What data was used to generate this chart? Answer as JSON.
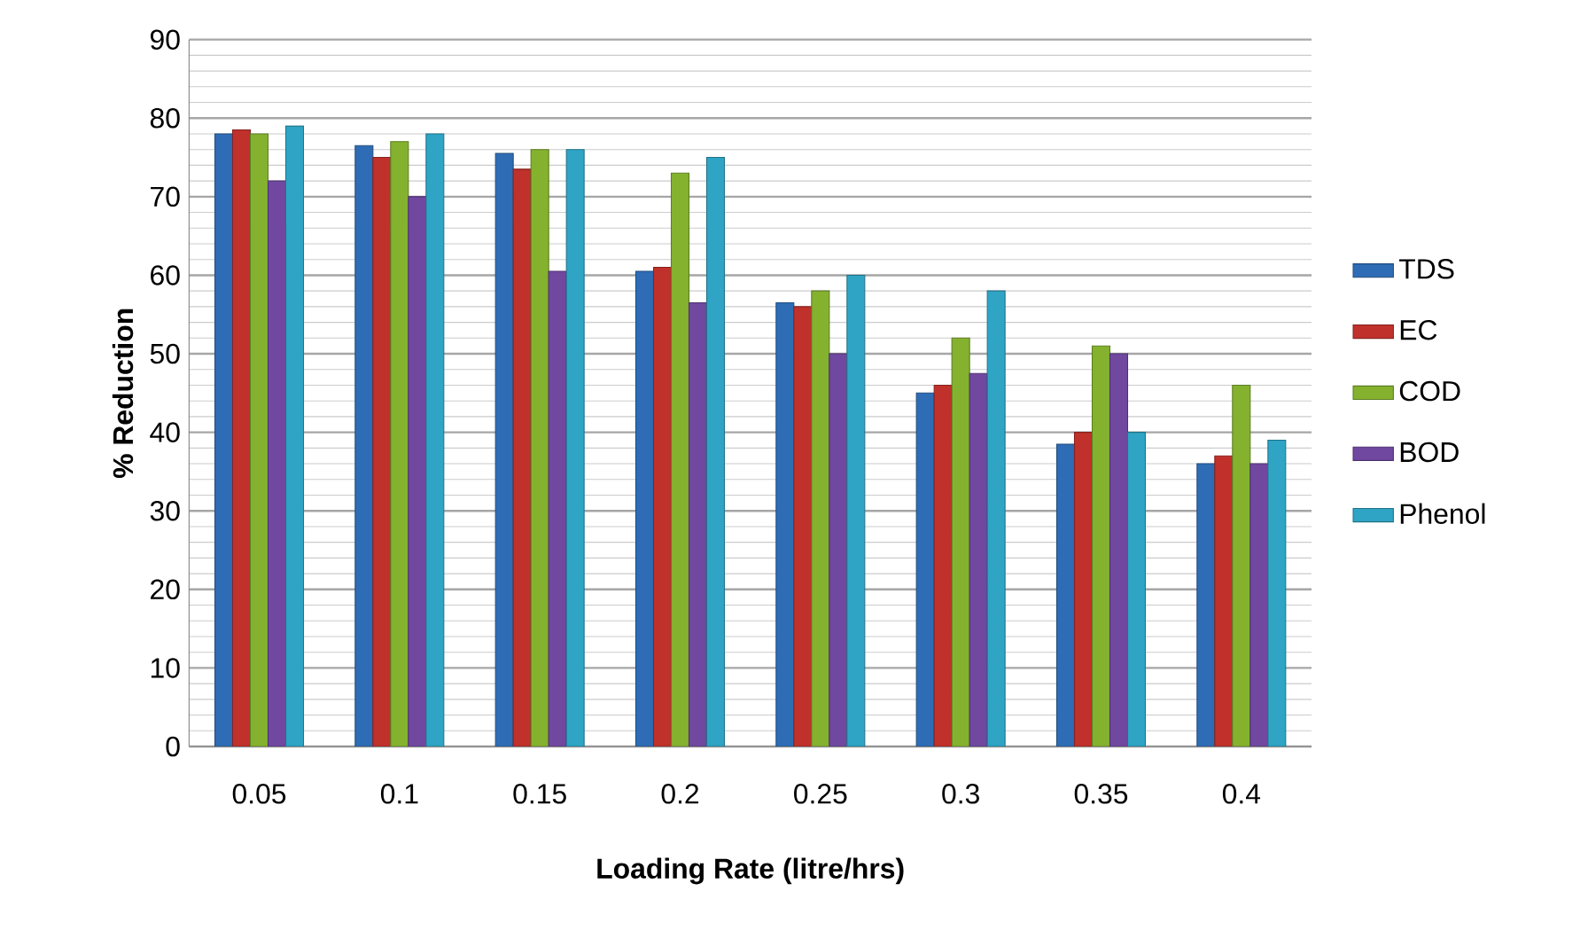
{
  "chart_data": {
    "type": "bar",
    "xlabel": "Loading Rate (litre/hrs)",
    "ylabel": "% Reduction",
    "categories": [
      "0.05",
      "0.1",
      "0.15",
      "0.2",
      "0.25",
      "0.3",
      "0.35",
      "0.4"
    ],
    "series": [
      {
        "name": "TDS",
        "color": "#2e6db5",
        "values": [
          78,
          76.5,
          75.5,
          60.5,
          56.5,
          45,
          38.5,
          36
        ]
      },
      {
        "name": "EC",
        "color": "#c0312b",
        "values": [
          78.5,
          75,
          73.5,
          61,
          56,
          46,
          40,
          37
        ]
      },
      {
        "name": "COD",
        "color": "#84b22f",
        "values": [
          78,
          77,
          76,
          73,
          58,
          52,
          51,
          46
        ]
      },
      {
        "name": "BOD",
        "color": "#7048a0",
        "values": [
          72,
          70,
          60.5,
          56.5,
          50,
          47.5,
          50,
          36
        ]
      },
      {
        "name": "Phenol",
        "color": "#2fa4c4",
        "values": [
          79,
          78,
          76,
          75,
          60,
          58,
          40,
          39
        ]
      }
    ],
    "ylim": [
      0,
      90
    ],
    "yticks": [
      0,
      10,
      20,
      30,
      40,
      50,
      60,
      70,
      80,
      90
    ],
    "grid": "y",
    "legend": "right"
  }
}
